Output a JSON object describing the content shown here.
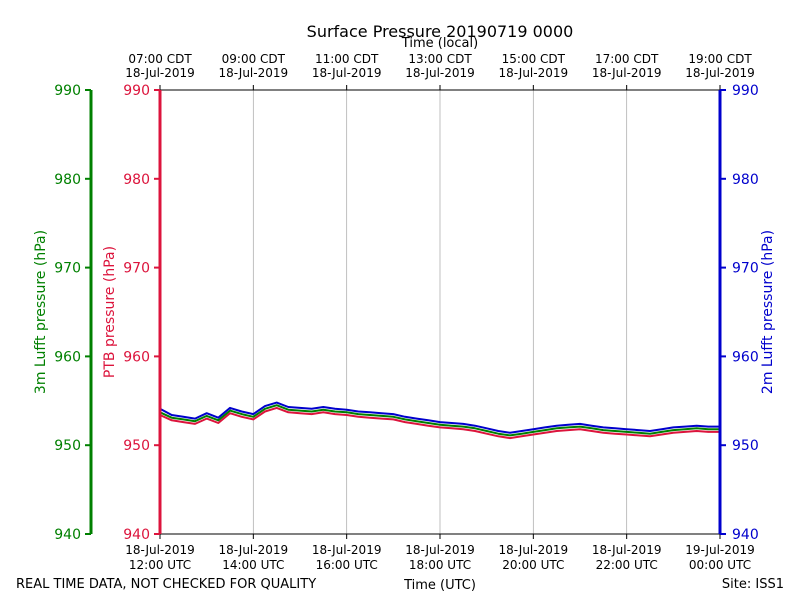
{
  "chart_data": {
    "type": "line",
    "title": "Surface Pressure 20190719 0000",
    "xlabel": "Time (UTC)",
    "x2label": "Time (local)",
    "footer_left": "REAL TIME DATA, NOT CHECKED FOR QUALITY",
    "footer_right": "Site: ISS1",
    "grid": "vertical",
    "x_range_utc_hours": [
      12,
      24
    ],
    "x_ticks_utc": [
      {
        "hour": 12,
        "line1": "18-Jul-2019",
        "line2": "12:00 UTC"
      },
      {
        "hour": 14,
        "line1": "18-Jul-2019",
        "line2": "14:00 UTC"
      },
      {
        "hour": 16,
        "line1": "18-Jul-2019",
        "line2": "16:00 UTC"
      },
      {
        "hour": 18,
        "line1": "18-Jul-2019",
        "line2": "18:00 UTC"
      },
      {
        "hour": 20,
        "line1": "18-Jul-2019",
        "line2": "20:00 UTC"
      },
      {
        "hour": 22,
        "line1": "18-Jul-2019",
        "line2": "22:00 UTC"
      },
      {
        "hour": 24,
        "line1": "19-Jul-2019",
        "line2": "00:00 UTC"
      }
    ],
    "x_ticks_local": [
      {
        "hour": 12,
        "line1": "07:00 CDT",
        "line2": "18-Jul-2019"
      },
      {
        "hour": 14,
        "line1": "09:00 CDT",
        "line2": "18-Jul-2019"
      },
      {
        "hour": 16,
        "line1": "11:00 CDT",
        "line2": "18-Jul-2019"
      },
      {
        "hour": 18,
        "line1": "13:00 CDT",
        "line2": "18-Jul-2019"
      },
      {
        "hour": 20,
        "line1": "15:00 CDT",
        "line2": "18-Jul-2019"
      },
      {
        "hour": 22,
        "line1": "17:00 CDT",
        "line2": "18-Jul-2019"
      },
      {
        "hour": 24,
        "line1": "19:00 CDT",
        "line2": "18-Jul-2019"
      }
    ],
    "y_axes": [
      {
        "id": "lufft3m",
        "label": "3m Lufft pressure (hPa)",
        "color": "#008000",
        "ylim": [
          940,
          990
        ],
        "ticks": [
          940,
          950,
          960,
          970,
          980,
          990
        ]
      },
      {
        "id": "ptb",
        "label": "PTB pressure (hPa)",
        "color": "#dc143c",
        "ylim": [
          940,
          990
        ],
        "ticks": [
          940,
          950,
          960,
          970,
          980,
          990
        ]
      },
      {
        "id": "lufft2m",
        "label": "2m Lufft pressure (hPa)",
        "color": "#0000cd",
        "ylim": [
          940,
          990
        ],
        "ticks": [
          940,
          950,
          960,
          970,
          980,
          990
        ]
      }
    ],
    "series": [
      {
        "axis": "ptb",
        "color": "#dc143c",
        "x": [
          12.0,
          12.25,
          12.5,
          12.75,
          13.0,
          13.25,
          13.5,
          13.75,
          14.0,
          14.25,
          14.5,
          14.75,
          15.0,
          15.25,
          15.5,
          15.75,
          16.0,
          16.25,
          16.5,
          16.75,
          17.0,
          17.25,
          17.5,
          17.75,
          18.0,
          18.25,
          18.5,
          18.75,
          19.0,
          19.25,
          19.5,
          19.75,
          20.0,
          20.25,
          20.5,
          20.75,
          21.0,
          21.25,
          21.5,
          21.75,
          22.0,
          22.25,
          22.5,
          22.75,
          23.0,
          23.25,
          23.5,
          23.75,
          24.0
        ],
        "values": [
          953.4,
          952.8,
          952.6,
          952.4,
          953.0,
          952.5,
          953.6,
          953.2,
          952.9,
          953.8,
          954.2,
          953.7,
          953.6,
          953.5,
          953.7,
          953.5,
          953.4,
          953.2,
          953.1,
          953.0,
          952.9,
          952.6,
          952.4,
          952.2,
          952.0,
          951.9,
          951.8,
          951.6,
          951.3,
          951.0,
          950.8,
          951.0,
          951.2,
          951.4,
          951.6,
          951.7,
          951.8,
          951.6,
          951.4,
          951.3,
          951.2,
          951.1,
          951.0,
          951.2,
          951.4,
          951.5,
          951.6,
          951.5,
          951.5
        ]
      },
      {
        "axis": "lufft3m",
        "color": "#008000",
        "x": [
          12.0,
          12.25,
          12.5,
          12.75,
          13.0,
          13.25,
          13.5,
          13.75,
          14.0,
          14.25,
          14.5,
          14.75,
          15.0,
          15.25,
          15.5,
          15.75,
          16.0,
          16.25,
          16.5,
          16.75,
          17.0,
          17.25,
          17.5,
          17.75,
          18.0,
          18.25,
          18.5,
          18.75,
          19.0,
          19.25,
          19.5,
          19.75,
          20.0,
          20.25,
          20.5,
          20.75,
          21.0,
          21.25,
          21.5,
          21.75,
          22.0,
          22.25,
          22.5,
          22.75,
          23.0,
          23.25,
          23.5,
          23.75,
          24.0
        ],
        "values": [
          953.7,
          953.1,
          952.9,
          952.7,
          953.3,
          952.8,
          953.9,
          953.5,
          953.2,
          954.1,
          954.5,
          954.0,
          953.9,
          953.8,
          954.0,
          953.8,
          953.7,
          953.5,
          953.4,
          953.3,
          953.2,
          952.9,
          952.7,
          952.5,
          952.3,
          952.2,
          952.1,
          951.9,
          951.6,
          951.3,
          951.1,
          951.3,
          951.5,
          951.7,
          951.9,
          952.0,
          952.1,
          951.9,
          951.7,
          951.6,
          951.5,
          951.4,
          951.3,
          951.5,
          951.7,
          951.8,
          951.9,
          951.8,
          951.8
        ]
      },
      {
        "axis": "lufft2m",
        "color": "#0000cd",
        "x": [
          12.0,
          12.25,
          12.5,
          12.75,
          13.0,
          13.25,
          13.5,
          13.75,
          14.0,
          14.25,
          14.5,
          14.75,
          15.0,
          15.25,
          15.5,
          15.75,
          16.0,
          16.25,
          16.5,
          16.75,
          17.0,
          17.25,
          17.5,
          17.75,
          18.0,
          18.25,
          18.5,
          18.75,
          19.0,
          19.25,
          19.5,
          19.75,
          20.0,
          20.25,
          20.5,
          20.75,
          21.0,
          21.25,
          21.5,
          21.75,
          22.0,
          22.25,
          22.5,
          22.75,
          23.0,
          23.25,
          23.5,
          23.75,
          24.0
        ],
        "values": [
          954.1,
          953.4,
          953.2,
          953.0,
          953.6,
          953.1,
          954.2,
          953.8,
          953.5,
          954.4,
          954.8,
          954.3,
          954.2,
          954.1,
          954.3,
          954.1,
          954.0,
          953.8,
          953.7,
          953.6,
          953.5,
          953.2,
          953.0,
          952.8,
          952.6,
          952.5,
          952.4,
          952.2,
          951.9,
          951.6,
          951.4,
          951.6,
          951.8,
          952.0,
          952.2,
          952.3,
          952.4,
          952.2,
          952.0,
          951.9,
          951.8,
          951.7,
          951.6,
          951.8,
          952.0,
          952.1,
          952.2,
          952.1,
          952.1
        ]
      }
    ]
  }
}
